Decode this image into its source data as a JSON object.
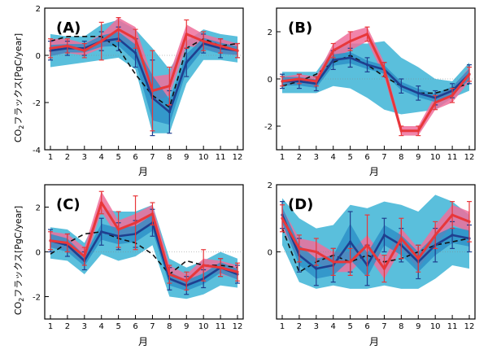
{
  "figure": {
    "ylabel_main": "CO",
    "ylabel_sub": "2",
    "ylabel_rest": "フラックス[PgC/year]",
    "xlabel": "月"
  },
  "colors": {
    "red_line": "#e8373a",
    "red_band": "#ee6f9b",
    "blue_line": "#1f3f8f",
    "blue_band": "#3db4d6",
    "dark_band": "#2a8ec7",
    "dashed": "#111111",
    "frame": "#000000"
  },
  "chart_data": [
    {
      "type": "line",
      "panel": "(A)",
      "x": [
        1,
        2,
        3,
        4,
        5,
        6,
        7,
        8,
        9,
        10,
        11,
        12
      ],
      "ylim": [
        -4,
        2
      ],
      "yticks": [
        -4,
        -2,
        0,
        2
      ],
      "ytick_labels": [
        "-4",
        "-2",
        "0",
        "2"
      ],
      "xticks": [
        1,
        2,
        3,
        4,
        5,
        6,
        7,
        8,
        9,
        10,
        11,
        12
      ],
      "series": [
        {
          "role": "dashed",
          "values": [
            0.6,
            0.8,
            0.8,
            0.8,
            0.3,
            -0.8,
            -1.7,
            -2.2,
            0.3,
            0.7,
            0.4,
            0.5
          ]
        },
        {
          "role": "blue",
          "values": [
            0.2,
            0.3,
            0.3,
            0.6,
            0.7,
            0.1,
            -1.8,
            -2.4,
            -0.3,
            0.5,
            0.3,
            0.2
          ],
          "err": [
            0.4,
            0.3,
            0.3,
            0.4,
            0.5,
            0.6,
            1.6,
            0.9,
            0.6,
            0.4,
            0.4,
            0.3
          ],
          "band_lo": [
            -0.5,
            -0.4,
            -0.3,
            -0.2,
            -0.1,
            -0.6,
            -3.3,
            -3.3,
            -1.2,
            -0.2,
            -0.2,
            -0.3
          ],
          "band_hi": [
            0.9,
            0.8,
            0.8,
            1.3,
            1.5,
            1.1,
            0.3,
            -0.6,
            0.6,
            1.1,
            0.9,
            0.8
          ]
        },
        {
          "role": "red",
          "values": [
            0.3,
            0.4,
            0.2,
            0.6,
            1.1,
            0.7,
            -1.5,
            -1.3,
            0.9,
            0.6,
            0.4,
            0.2
          ],
          "err": [
            0.4,
            0.3,
            0.3,
            0.8,
            0.5,
            0.4,
            1.7,
            0.8,
            0.6,
            0.4,
            0.3,
            0.3
          ],
          "band_lo": [
            0.0,
            0.1,
            0.0,
            0.3,
            0.7,
            0.3,
            -2.0,
            -1.7,
            0.4,
            0.3,
            0.1,
            0.0
          ],
          "band_hi": [
            0.7,
            0.7,
            0.5,
            0.9,
            1.6,
            1.2,
            -0.9,
            -0.8,
            1.3,
            0.9,
            0.7,
            0.5
          ]
        }
      ]
    },
    {
      "type": "line",
      "panel": "(B)",
      "x": [
        1,
        2,
        3,
        4,
        5,
        6,
        7,
        8,
        9,
        10,
        11,
        12
      ],
      "ylim": [
        -3,
        3
      ],
      "yticks": [
        -2,
        0,
        2
      ],
      "ytick_labels": [
        "-2",
        "0",
        "2"
      ],
      "xticks": [
        1,
        2,
        3,
        4,
        5,
        6,
        7,
        8,
        9,
        10,
        11,
        12
      ],
      "series": [
        {
          "role": "dashed",
          "values": [
            -0.3,
            -0.1,
            0.2,
            0.7,
            1.0,
            0.6,
            0.1,
            -0.3,
            -0.6,
            -0.6,
            -0.4,
            -0.2
          ]
        },
        {
          "role": "blue",
          "values": [
            -0.1,
            -0.1,
            -0.2,
            0.8,
            0.9,
            0.6,
            0.4,
            -0.3,
            -0.6,
            -0.8,
            -0.5,
            0.2
          ],
          "err": [
            0.3,
            0.3,
            0.3,
            0.4,
            0.4,
            0.3,
            0.3,
            0.3,
            0.3,
            0.3,
            0.3,
            0.4
          ],
          "band_lo": [
            -0.6,
            -0.6,
            -0.6,
            -0.3,
            -0.4,
            -0.8,
            -1.3,
            -1.5,
            -1.4,
            -1.3,
            -0.8,
            -0.5
          ],
          "band_hi": [
            0.3,
            0.3,
            0.3,
            1.3,
            1.5,
            1.5,
            1.6,
            0.9,
            0.5,
            0.0,
            -0.1,
            0.7
          ]
        },
        {
          "role": "red",
          "values": [
            -0.1,
            0.0,
            -0.1,
            1.2,
            1.6,
            1.9,
            0.4,
            -2.2,
            -2.2,
            -1.0,
            -0.7,
            0.2
          ],
          "err": [
            0.2,
            0.2,
            0.2,
            0.3,
            0.4,
            0.3,
            0.3,
            0.2,
            0.2,
            0.3,
            0.3,
            0.3
          ],
          "band_lo": [
            -0.3,
            -0.2,
            -0.3,
            0.9,
            1.2,
            1.6,
            0.1,
            -2.4,
            -2.4,
            -1.3,
            -1.0,
            -0.1
          ],
          "band_hi": [
            0.1,
            0.2,
            0.1,
            1.5,
            2.0,
            2.2,
            0.7,
            -2.0,
            -2.0,
            -0.7,
            -0.4,
            0.5
          ]
        }
      ]
    },
    {
      "type": "line",
      "panel": "(C)",
      "x": [
        1,
        2,
        3,
        4,
        5,
        6,
        7,
        8,
        9,
        10,
        11,
        12
      ],
      "ylim": [
        -3,
        3
      ],
      "yticks": [
        -2,
        0,
        2
      ],
      "ytick_labels": [
        "-2",
        "0",
        "2"
      ],
      "xticks": [
        1,
        2,
        3,
        4,
        5,
        6,
        7,
        8,
        9,
        10,
        11,
        12
      ],
      "series": [
        {
          "role": "dashed",
          "values": [
            -0.1,
            0.4,
            0.8,
            0.9,
            0.6,
            0.4,
            -0.1,
            -1.0,
            -0.4,
            -0.6,
            -0.6,
            -0.7
          ]
        },
        {
          "role": "blue",
          "values": [
            0.5,
            0.3,
            -0.4,
            0.9,
            0.7,
            0.8,
            1.3,
            -1.2,
            -1.5,
            -1.2,
            -0.7,
            -1.0
          ],
          "err": [
            0.5,
            0.5,
            0.4,
            0.6,
            0.6,
            0.6,
            0.6,
            0.5,
            0.4,
            0.4,
            0.4,
            0.4
          ],
          "band_lo": [
            -0.3,
            -0.4,
            -1.0,
            -0.1,
            -0.4,
            -0.2,
            0.3,
            -2.0,
            -2.1,
            -1.9,
            -1.5,
            -1.6
          ],
          "band_hi": [
            1.1,
            1.0,
            0.4,
            1.9,
            1.8,
            1.8,
            2.1,
            -0.3,
            -0.7,
            -0.4,
            0.0,
            -0.3
          ]
        },
        {
          "role": "red",
          "values": [
            0.5,
            0.4,
            -0.2,
            2.2,
            1.0,
            1.3,
            1.7,
            -1.0,
            -1.3,
            -0.6,
            -0.7,
            -0.9
          ],
          "err": [
            0.4,
            0.4,
            0.4,
            0.5,
            0.8,
            1.2,
            0.5,
            0.4,
            0.4,
            0.7,
            0.4,
            0.4
          ],
          "band_lo": [
            0.2,
            0.1,
            -0.5,
            1.8,
            0.6,
            0.9,
            1.3,
            -1.3,
            -1.6,
            -0.9,
            -1.0,
            -1.2
          ],
          "band_hi": [
            0.9,
            0.8,
            0.2,
            2.7,
            1.4,
            1.7,
            2.1,
            -0.6,
            -1.0,
            -0.3,
            -0.4,
            -0.6
          ]
        }
      ]
    },
    {
      "type": "line",
      "panel": "(D)",
      "x": [
        1,
        2,
        3,
        4,
        5,
        6,
        7,
        8,
        9,
        10,
        11,
        12
      ],
      "ylim": [
        -2,
        2
      ],
      "yticks": [
        0,
        2
      ],
      "ytick_labels": [
        "0",
        "2"
      ],
      "xticks": [
        1,
        2,
        3,
        4,
        5,
        6,
        7,
        8,
        9,
        10,
        11,
        12
      ],
      "series": [
        {
          "role": "dashed",
          "values": [
            0.7,
            -0.6,
            -0.3,
            -0.1,
            -0.3,
            -0.1,
            -0.3,
            -0.2,
            0.0,
            0.2,
            0.3,
            0.4
          ]
        },
        {
          "role": "blue",
          "values": [
            1.1,
            -0.1,
            -0.5,
            -0.4,
            0.3,
            -0.4,
            0.5,
            0.2,
            -0.3,
            0.2,
            0.5,
            0.4
          ],
          "err": [
            0.4,
            0.5,
            0.5,
            0.5,
            0.9,
            0.6,
            0.5,
            0.5,
            0.5,
            0.5,
            0.4,
            0.4
          ],
          "band_lo": [
            0.2,
            -0.9,
            -1.1,
            -1.0,
            -1.1,
            -1.1,
            -1.0,
            -1.1,
            -1.1,
            -0.8,
            -0.4,
            -0.5
          ],
          "band_hi": [
            1.6,
            1.0,
            0.7,
            0.8,
            1.4,
            1.3,
            1.5,
            1.4,
            1.2,
            1.7,
            1.5,
            1.1
          ]
        },
        {
          "role": "red",
          "values": [
            1.0,
            0.1,
            0.0,
            -0.3,
            -0.3,
            0.2,
            -0.5,
            0.4,
            -0.2,
            0.5,
            1.1,
            0.9
          ],
          "err": [
            0.4,
            0.4,
            0.4,
            0.4,
            0.4,
            0.9,
            0.4,
            0.6,
            0.4,
            0.4,
            0.4,
            0.6
          ],
          "band_lo": [
            0.7,
            -0.2,
            -0.3,
            -0.6,
            -0.6,
            -0.1,
            -0.8,
            0.1,
            -0.5,
            0.2,
            0.8,
            0.6
          ],
          "band_hi": [
            1.3,
            0.4,
            0.3,
            0.0,
            0.0,
            0.5,
            -0.2,
            0.7,
            0.1,
            0.8,
            1.4,
            1.2
          ]
        }
      ]
    }
  ]
}
